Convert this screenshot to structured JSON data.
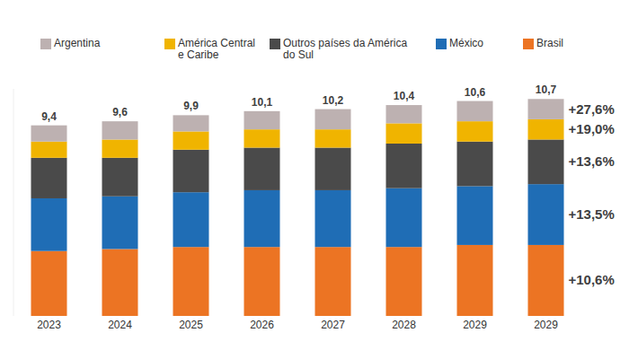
{
  "chart_data": {
    "type": "bar",
    "stacked": true,
    "tick_labels": "x",
    "legend": "top",
    "categories": [
      "2023",
      "2024",
      "2025",
      "2026",
      "2027",
      "2028",
      "2029",
      "2029"
    ],
    "ylim": [
      0,
      11.2
    ],
    "series": [
      {
        "name": "Argentina",
        "color": "#bdb1b1",
        "values": [
          0.8,
          0.9,
          0.8,
          0.9,
          1.0,
          0.9,
          1.0,
          1.0
        ]
      },
      {
        "name": "América Central e Caribe",
        "color": "#f0b400",
        "values": [
          0.8,
          0.9,
          0.9,
          0.9,
          0.9,
          1.0,
          1.0,
          1.0
        ]
      },
      {
        "name": "Outros países da América do Sul",
        "color": "#4a4a4a",
        "values": [
          2.0,
          1.9,
          2.1,
          2.1,
          2.1,
          2.2,
          2.2,
          2.2
        ]
      },
      {
        "name": "México",
        "color": "#1f6db5",
        "values": [
          2.6,
          2.6,
          2.7,
          2.8,
          2.8,
          2.9,
          2.9,
          3.0
        ]
      },
      {
        "name": "Brasil",
        "color": "#ec7423",
        "values": [
          3.2,
          3.3,
          3.4,
          3.4,
          3.4,
          3.4,
          3.5,
          3.5
        ]
      }
    ],
    "totals": [
      9.4,
      9.6,
      9.9,
      10.1,
      10.2,
      10.4,
      10.6,
      10.7
    ],
    "total_labels": [
      "9,4",
      "9,6",
      "9,9",
      "10,1",
      "10,2",
      "10,4",
      "10,6",
      "10,7"
    ],
    "annotations": [
      "+27,6%",
      "+19,0%",
      "+13,6%",
      "+13,5%",
      "+10,6%"
    ]
  }
}
